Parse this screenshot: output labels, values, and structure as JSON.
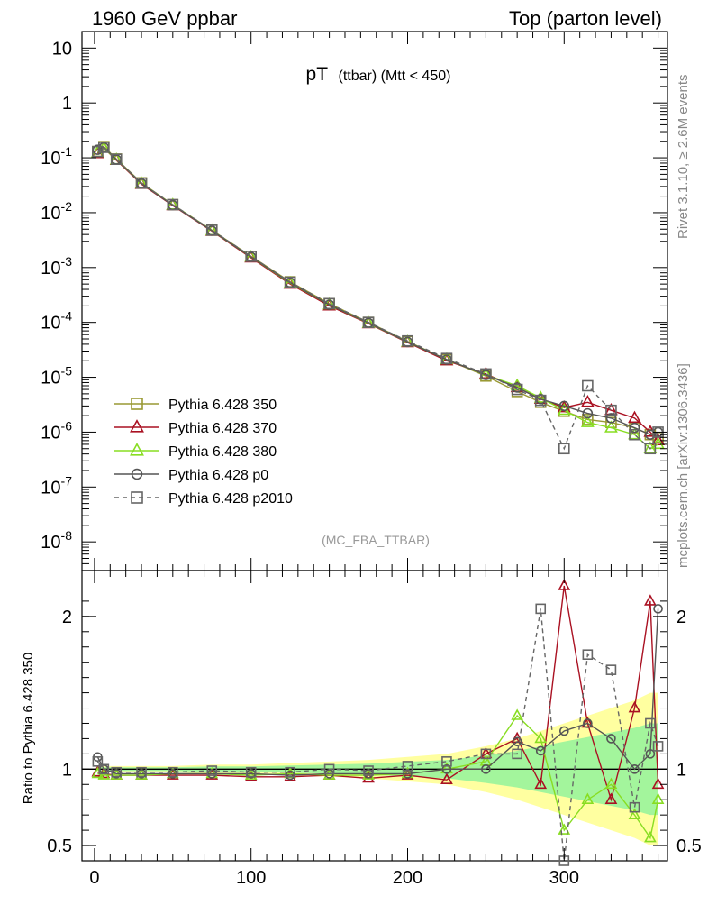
{
  "header": {
    "left": "1960 GeV ppbar",
    "right": "Top (parton level)"
  },
  "side_text": {
    "rivet": "Rivet 3.1.10, ≥ 2.6M events",
    "mcplots": "mcplots.cern.ch [arXiv:1306.3436]"
  },
  "chart_data": [
    {
      "type": "line",
      "panel": "main",
      "title_main": "pT",
      "title_sub": "(ttbar) (Mtt < 450)",
      "reference": "(MC_FBA_TTBAR)",
      "xlabel": "",
      "ylabel": "",
      "xlim": [
        -8,
        366
      ],
      "ylim": [
        3e-09,
        20
      ],
      "yscale": "log",
      "ytick_labels": [
        {
          "v": 10,
          "label": "10"
        },
        {
          "v": 1,
          "label": "1"
        },
        {
          "v": 0.1,
          "label": "10",
          "exp": "-1"
        },
        {
          "v": 0.01,
          "label": "10",
          "exp": "-2"
        },
        {
          "v": 0.001,
          "label": "10",
          "exp": "-3"
        },
        {
          "v": 0.0001,
          "label": "10",
          "exp": "-4"
        },
        {
          "v": 1e-05,
          "label": "10",
          "exp": "-5"
        },
        {
          "v": 1e-06,
          "label": "10",
          "exp": "-6"
        },
        {
          "v": 1e-07,
          "label": "10",
          "exp": "-7"
        },
        {
          "v": 1e-08,
          "label": "10",
          "exp": "-8"
        }
      ],
      "legend_position": "lower-left",
      "x": [
        2,
        6,
        14,
        30,
        50,
        75,
        100,
        125,
        150,
        175,
        200,
        225,
        250,
        270,
        285,
        300,
        315,
        330,
        345,
        355,
        360
      ],
      "series": [
        {
          "name": "Pythia 6.428 350",
          "color": "#999933",
          "marker": "square",
          "dash": false,
          "values": [
            0.13,
            0.16,
            0.095,
            0.035,
            0.014,
            0.0048,
            0.0016,
            0.00055,
            0.00022,
            0.0001,
            4.5e-05,
            2.1e-05,
            1.05e-05,
            5.5e-06,
            3.5e-06,
            2.4e-06,
            1.7e-06,
            1.5e-06,
            1.2e-06,
            9e-07,
            8e-07
          ]
        },
        {
          "name": "Pythia 6.428 370",
          "color": "#aa1122",
          "marker": "triangle",
          "dash": false,
          "values": [
            0.12,
            0.15,
            0.09,
            0.033,
            0.0135,
            0.0046,
            0.0015,
            0.0005,
            0.0002,
            9.5e-05,
            4.3e-05,
            2e-05,
            1.15e-05,
            6.5e-06,
            4e-06,
            2.8e-06,
            3.5e-06,
            2.5e-06,
            1.8e-06,
            1e-06,
            7e-07
          ]
        },
        {
          "name": "Pythia 6.428 380",
          "color": "#88dd22",
          "marker": "triangle",
          "dash": false,
          "values": [
            0.125,
            0.15,
            0.092,
            0.034,
            0.0138,
            0.0047,
            0.00155,
            0.00052,
            0.00021,
            9.7e-05,
            4.4e-05,
            2.1e-05,
            1.1e-05,
            7e-06,
            4.2e-06,
            2.5e-06,
            1.5e-06,
            1.2e-06,
            9e-07,
            5e-07,
            6e-07
          ]
        },
        {
          "name": "Pythia 6.428 p0",
          "color": "#555555",
          "marker": "circle",
          "dash": false,
          "values": [
            0.14,
            0.155,
            0.093,
            0.034,
            0.0137,
            0.0047,
            0.00156,
            0.00053,
            0.00021,
            9.8e-05,
            4.4e-05,
            2.1e-05,
            1.1e-05,
            6.5e-06,
            4e-06,
            3e-06,
            2.2e-06,
            1.8e-06,
            1.2e-06,
            9e-07,
            1e-06
          ]
        },
        {
          "name": "Pythia 6.428 p2010",
          "color": "#666666",
          "marker": "square",
          "dash": true,
          "values": [
            0.13,
            0.155,
            0.094,
            0.0345,
            0.014,
            0.0048,
            0.0016,
            0.00054,
            0.00022,
            0.0001,
            4.6e-05,
            2.2e-05,
            1.15e-05,
            6e-06,
            3.8e-06,
            5e-07,
            7e-06,
            2.5e-06,
            9e-07,
            5e-07,
            1e-06
          ]
        }
      ]
    },
    {
      "type": "line",
      "panel": "ratio",
      "ylabel": "Ratio to Pythia 6.428 350",
      "xlabel": "",
      "xlim": [
        -8,
        366
      ],
      "ylim": [
        0.4,
        2.3
      ],
      "xtick_labels": [
        {
          "v": 0,
          "label": "0"
        },
        {
          "v": 100,
          "label": "100"
        },
        {
          "v": 200,
          "label": "200"
        },
        {
          "v": 300,
          "label": "300"
        }
      ],
      "ytick_labels": [
        {
          "v": 0.5,
          "label": "0.5"
        },
        {
          "v": 1,
          "label": "1"
        },
        {
          "v": 2,
          "label": "2"
        }
      ],
      "x": [
        2,
        6,
        14,
        30,
        50,
        75,
        100,
        125,
        150,
        175,
        200,
        225,
        250,
        270,
        285,
        300,
        315,
        330,
        345,
        355,
        360
      ],
      "band_halfwidth": [
        0.02,
        0.02,
        0.02,
        0.02,
        0.02,
        0.03,
        0.03,
        0.04,
        0.05,
        0.06,
        0.08,
        0.1,
        0.15,
        0.2,
        0.25,
        0.3,
        0.35,
        0.4,
        0.45,
        0.5,
        0.5
      ],
      "series": [
        {
          "name": "Pythia 6.428 370",
          "color": "#aa1122",
          "marker": "triangle",
          "dash": false,
          "values": [
            0.98,
            0.97,
            0.96,
            0.96,
            0.96,
            0.96,
            0.95,
            0.95,
            0.96,
            0.94,
            0.96,
            0.93,
            1.1,
            1.2,
            0.9,
            2.2,
            1.3,
            0.8,
            1.4,
            2.1,
            0.9
          ]
        },
        {
          "name": "Pythia 6.428 380",
          "color": "#88dd22",
          "marker": "triangle",
          "dash": false,
          "values": [
            0.97,
            0.96,
            0.96,
            0.96,
            0.97,
            0.97,
            0.96,
            0.97,
            0.96,
            0.96,
            0.97,
            1.0,
            1.05,
            1.35,
            1.2,
            0.6,
            0.8,
            0.9,
            0.7,
            0.55,
            0.8
          ]
        },
        {
          "name": "Pythia 6.428 p0",
          "color": "#555555",
          "marker": "circle",
          "dash": false,
          "values": [
            1.08,
            1.0,
            0.97,
            0.97,
            0.97,
            0.97,
            0.97,
            0.96,
            0.97,
            0.97,
            0.97,
            1.0,
            1.0,
            1.18,
            1.12,
            1.25,
            1.3,
            1.2,
            1.0,
            1.1,
            2.05
          ]
        },
        {
          "name": "Pythia 6.428 p2010",
          "color": "#666666",
          "marker": "square",
          "dash": true,
          "values": [
            1.05,
            1.0,
            0.98,
            0.98,
            0.98,
            0.99,
            0.98,
            0.98,
            1.0,
            0.99,
            1.02,
            1.05,
            1.1,
            1.1,
            2.05,
            0.4,
            1.75,
            1.65,
            0.75,
            1.3,
            1.15
          ]
        }
      ]
    }
  ]
}
